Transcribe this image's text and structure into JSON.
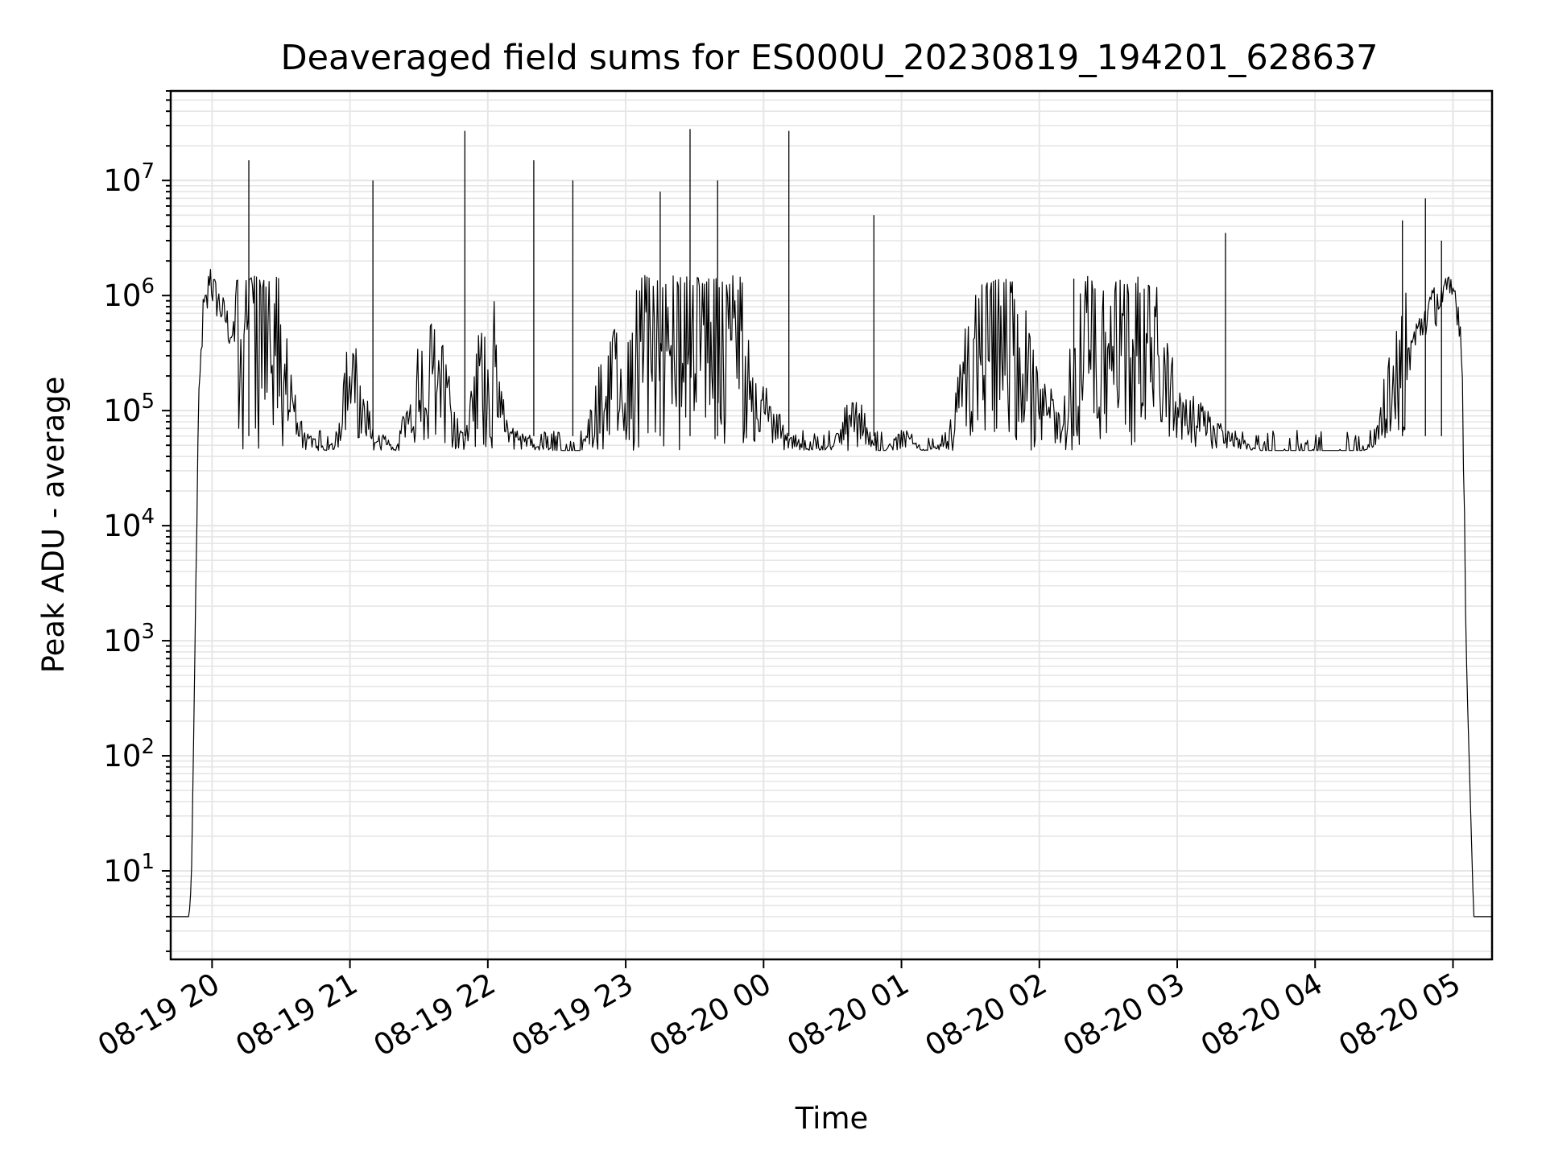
{
  "chart_data": {
    "type": "line",
    "title": "Deaveraged field sums for ES000U_20230819_194201_628637",
    "xlabel": "Time",
    "ylabel": "Peak ADU - average",
    "yscale": "log",
    "ylim": [
      1.7,
      60000000
    ],
    "xlim": [
      "2023-08-19 19:42",
      "2023-08-20 05:17"
    ],
    "x_ticks": [
      "08-19 20",
      "08-19 21",
      "08-19 22",
      "08-19 23",
      "08-20 00",
      "08-20 01",
      "08-20 02",
      "08-20 03",
      "08-20 04",
      "08-20 05"
    ],
    "y_ticks": [
      "10^1",
      "10^2",
      "10^3",
      "10^4",
      "10^5",
      "10^6",
      "10^7"
    ],
    "grid": true,
    "line_color": "#000000",
    "grid_color": "#e6e6e6",
    "series": [
      {
        "x": [
          "2023-08-19 19:42",
          "2023-08-19 19:50",
          "2023-08-19 19:51",
          "2023-08-19 19:52",
          "2023-08-19 19:54",
          "2023-08-19 19:56",
          "2023-08-19 19:58",
          "2023-08-19 19:59",
          "2023-08-19 20:00",
          "2023-08-19 20:05",
          "2023-08-19 20:10",
          "2023-08-19 20:13",
          "2023-08-19 20:18",
          "2023-08-19 20:25",
          "2023-08-19 20:30",
          "2023-08-19 20:35",
          "2023-08-19 20:40",
          "2023-08-19 20:45",
          "2023-08-19 20:50",
          "2023-08-19 20:55",
          "2023-08-19 21:00",
          "2023-08-19 21:10",
          "2023-08-19 21:20",
          "2023-08-19 21:35",
          "2023-08-19 21:50",
          "2023-08-19 22:00",
          "2023-08-19 22:10",
          "2023-08-19 22:20",
          "2023-08-19 22:30",
          "2023-08-19 22:40",
          "2023-08-19 22:50",
          "2023-08-19 23:00",
          "2023-08-19 23:10",
          "2023-08-19 23:20",
          "2023-08-19 23:30",
          "2023-08-19 23:40",
          "2023-08-19 23:50",
          "2023-08-20 00:00",
          "2023-08-20 00:10",
          "2023-08-20 00:20",
          "2023-08-20 00:30",
          "2023-08-20 00:40",
          "2023-08-20 00:50",
          "2023-08-20 01:00",
          "2023-08-20 01:10",
          "2023-08-20 01:20",
          "2023-08-20 01:30",
          "2023-08-20 01:40",
          "2023-08-20 01:50",
          "2023-08-20 02:00",
          "2023-08-20 02:10",
          "2023-08-20 02:20",
          "2023-08-20 02:30",
          "2023-08-20 02:40",
          "2023-08-20 02:50",
          "2023-08-20 03:00",
          "2023-08-20 03:10",
          "2023-08-20 03:20",
          "2023-08-20 03:30",
          "2023-08-20 03:40",
          "2023-08-20 03:50",
          "2023-08-20 04:00",
          "2023-08-20 04:10",
          "2023-08-20 04:20",
          "2023-08-20 04:30",
          "2023-08-20 04:40",
          "2023-08-20 04:45",
          "2023-08-20 04:50",
          "2023-08-20 04:55",
          "2023-08-20 05:00",
          "2023-08-20 05:02",
          "2023-08-20 05:04",
          "2023-08-20 05:06",
          "2023-08-20 05:08",
          "2023-08-20 05:09",
          "2023-08-20 05:11",
          "2023-08-20 05:17"
        ],
        "values": [
          4,
          4,
          8,
          150,
          80000,
          700000,
          900000,
          1800000,
          1200000,
          700000,
          400000,
          1000000,
          800000,
          600000,
          300000,
          100000,
          60000,
          50000,
          45000,
          60000,
          200000,
          60000,
          45000,
          300000,
          50000,
          400000,
          60000,
          50000,
          45000,
          40000,
          150000,
          200000,
          800000,
          900000,
          1000000,
          800000,
          400000,
          100000,
          60000,
          45000,
          50000,
          100000,
          40000,
          60000,
          45000,
          50000,
          300000,
          500000,
          400000,
          100000,
          80000,
          500000,
          400000,
          450000,
          400000,
          100000,
          80000,
          60000,
          50000,
          40000,
          35000,
          32000,
          35000,
          40000,
          100000,
          300000,
          500000,
          800000,
          1000000,
          1100000,
          900000,
          300000,
          500,
          20,
          4,
          4,
          4
        ]
      }
    ],
    "spikes": [
      {
        "x": "2023-08-19 20:16",
        "y": 15000000
      },
      {
        "x": "2023-08-19 21:10",
        "y": 10000000
      },
      {
        "x": "2023-08-19 21:50",
        "y": 27000000
      },
      {
        "x": "2023-08-19 22:20",
        "y": 15000000
      },
      {
        "x": "2023-08-19 22:37",
        "y": 10000000
      },
      {
        "x": "2023-08-19 23:15",
        "y": 8000000
      },
      {
        "x": "2023-08-19 23:28",
        "y": 28000000
      },
      {
        "x": "2023-08-19 23:40",
        "y": 10000000
      },
      {
        "x": "2023-08-20 00:11",
        "y": 27000000
      },
      {
        "x": "2023-08-20 00:48",
        "y": 5000000
      },
      {
        "x": "2023-08-20 02:15",
        "y": 1400000
      },
      {
        "x": "2023-08-20 03:21",
        "y": 3500000
      },
      {
        "x": "2023-08-20 04:38",
        "y": 4500000
      },
      {
        "x": "2023-08-20 04:48",
        "y": 7000000
      },
      {
        "x": "2023-08-20 04:55",
        "y": 3000000
      }
    ]
  }
}
